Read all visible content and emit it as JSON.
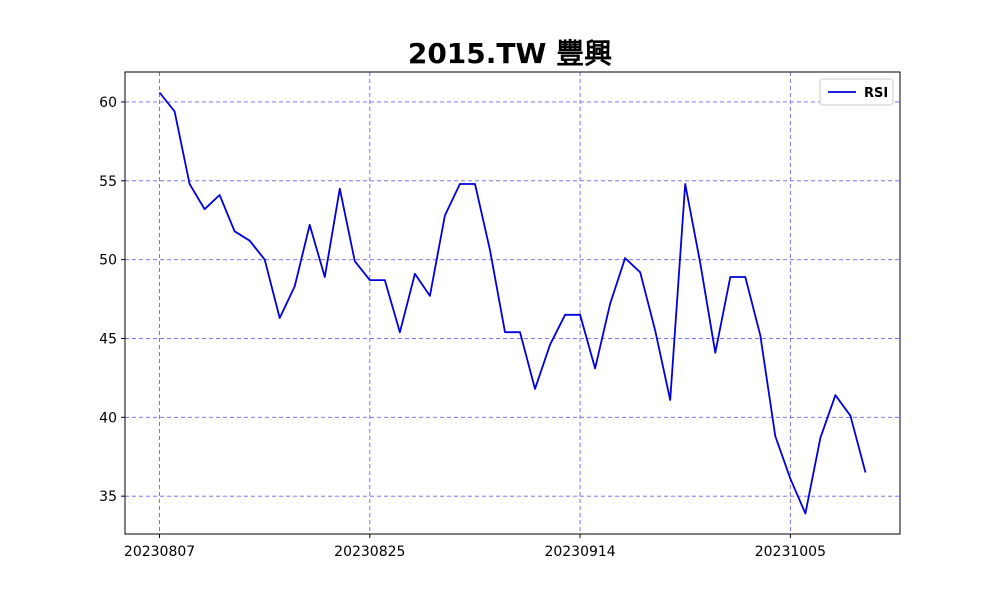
{
  "chart_data": {
    "type": "line",
    "title": "2015.TW 豐興",
    "xlabel": "",
    "ylabel": "",
    "x_tick_labels": [
      "20230807",
      "20230825",
      "20230914",
      "20231005"
    ],
    "x_tick_index": [
      0,
      14,
      28,
      42
    ],
    "y_ticks": [
      35,
      40,
      45,
      50,
      55,
      60
    ],
    "ylim": [
      32.6,
      61.9
    ],
    "xlim": [
      -2.3,
      49.3
    ],
    "grid": true,
    "legend_position": "top-right",
    "series": [
      {
        "name": "RSI",
        "color": "#0000dd",
        "values": [
          60.6,
          59.4,
          54.8,
          53.2,
          54.1,
          51.8,
          51.2,
          50.0,
          46.3,
          48.3,
          52.2,
          48.9,
          54.5,
          49.9,
          48.7,
          48.7,
          45.4,
          49.1,
          47.7,
          52.8,
          54.8,
          54.8,
          50.6,
          45.4,
          45.4,
          41.8,
          44.6,
          46.5,
          46.5,
          43.1,
          47.2,
          50.1,
          49.2,
          45.5,
          41.1,
          54.8,
          49.8,
          44.1,
          48.9,
          48.9,
          45.2,
          38.8,
          36.1,
          33.9,
          38.7,
          41.4,
          40.1,
          36.5
        ]
      }
    ]
  }
}
